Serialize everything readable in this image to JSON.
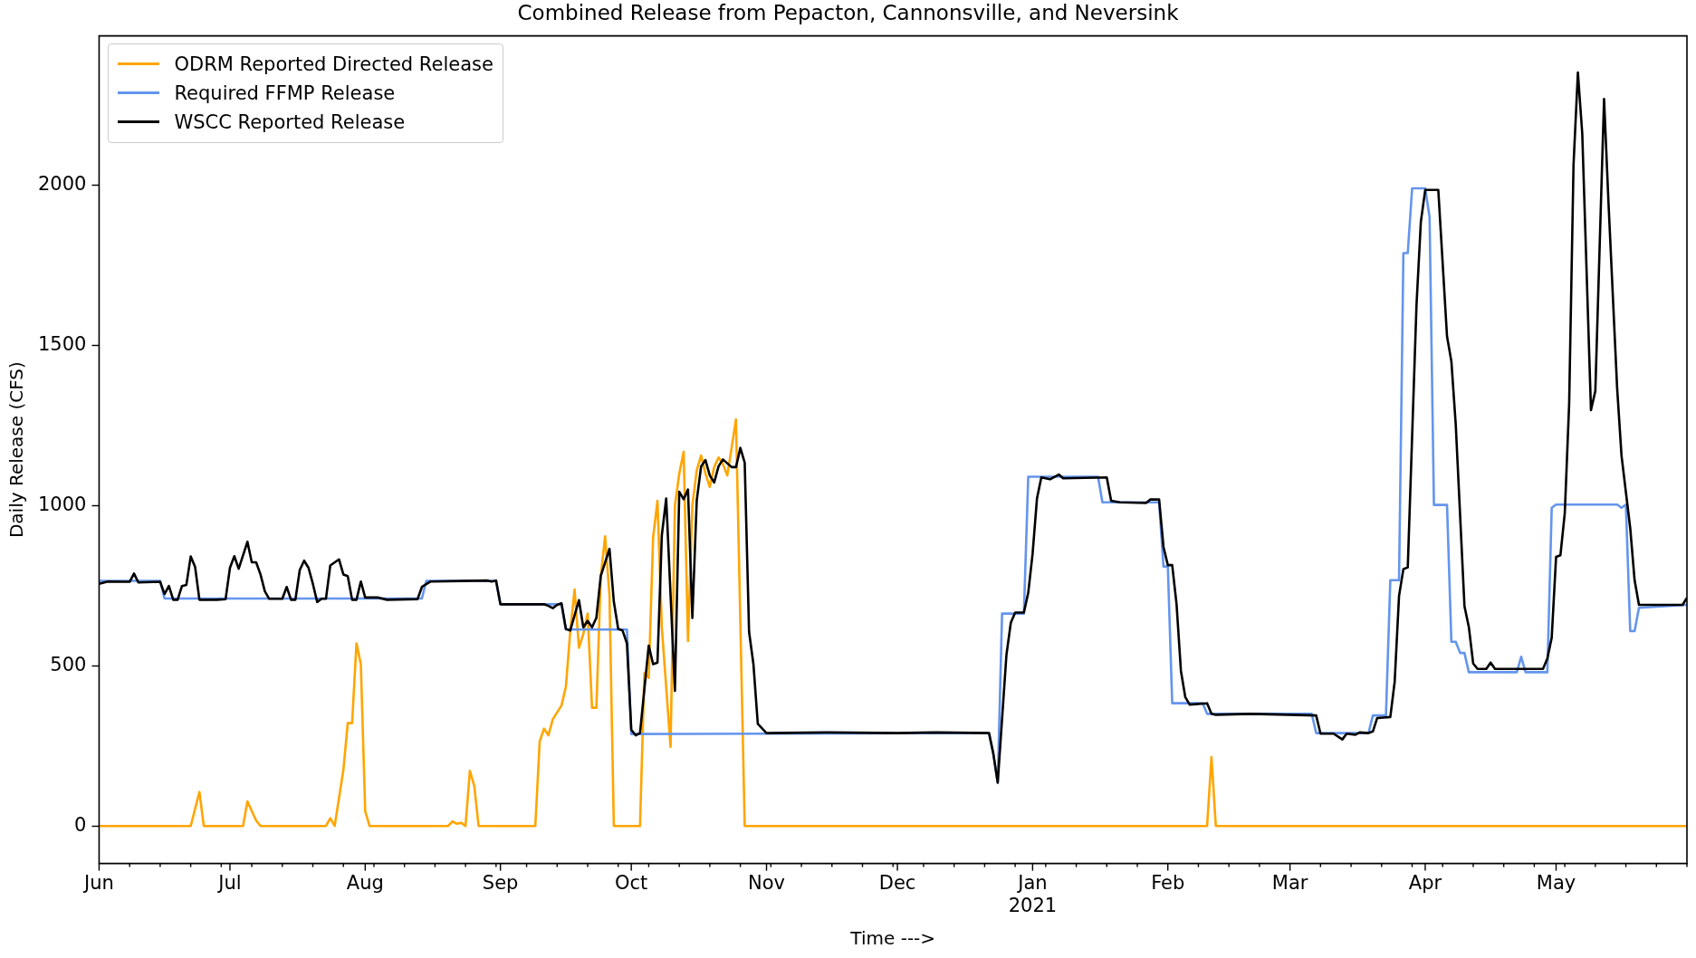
{
  "chart_data": {
    "type": "line",
    "title": "Combined Release from Pepacton, Cannonsville, and Neversink",
    "xlabel": "Time --->",
    "ylabel": "Daily Release (CFS)",
    "legend": "top left",
    "xlim": [
      "2020-06-01",
      "2021-05-31"
    ],
    "ylim": [
      -117,
      2466
    ],
    "yticks": [
      0,
      500,
      1000,
      1500,
      2000
    ],
    "xticks": [
      {
        "value": "2020-06-01",
        "label": "Jun"
      },
      {
        "value": "2020-06-08",
        "label": null
      },
      {
        "value": "2020-06-15",
        "label": null
      },
      {
        "value": "2020-06-22",
        "label": null
      },
      {
        "value": "2020-06-29",
        "label": null
      },
      {
        "value": "2020-07-01",
        "label": "Jul"
      },
      {
        "value": "2020-07-06",
        "label": null
      },
      {
        "value": "2020-07-13",
        "label": null
      },
      {
        "value": "2020-07-20",
        "label": null
      },
      {
        "value": "2020-07-27",
        "label": null
      },
      {
        "value": "2020-08-01",
        "label": "Aug"
      },
      {
        "value": "2020-08-03",
        "label": null
      },
      {
        "value": "2020-08-10",
        "label": null
      },
      {
        "value": "2020-08-17",
        "label": null
      },
      {
        "value": "2020-08-24",
        "label": null
      },
      {
        "value": "2020-08-31",
        "label": null
      },
      {
        "value": "2020-09-01",
        "label": "Sep"
      },
      {
        "value": "2020-09-07",
        "label": null
      },
      {
        "value": "2020-09-14",
        "label": null
      },
      {
        "value": "2020-09-21",
        "label": null
      },
      {
        "value": "2020-09-28",
        "label": null
      },
      {
        "value": "2020-10-01",
        "label": "Oct"
      },
      {
        "value": "2020-10-05",
        "label": null
      },
      {
        "value": "2020-10-12",
        "label": null
      },
      {
        "value": "2020-10-19",
        "label": null
      },
      {
        "value": "2020-10-26",
        "label": null
      },
      {
        "value": "2020-11-01",
        "label": "Nov"
      },
      {
        "value": "2020-11-02",
        "label": null
      },
      {
        "value": "2020-11-09",
        "label": null
      },
      {
        "value": "2020-11-16",
        "label": null
      },
      {
        "value": "2020-11-23",
        "label": null
      },
      {
        "value": "2020-11-30",
        "label": null
      },
      {
        "value": "2020-12-01",
        "label": "Dec"
      },
      {
        "value": "2020-12-07",
        "label": null
      },
      {
        "value": "2020-12-14",
        "label": null
      },
      {
        "value": "2020-12-21",
        "label": null
      },
      {
        "value": "2020-12-28",
        "label": null
      },
      {
        "value": "2021-01-01",
        "label": "Jan\n2021"
      },
      {
        "value": "2021-01-04",
        "label": null
      },
      {
        "value": "2021-01-11",
        "label": null
      },
      {
        "value": "2021-01-18",
        "label": null
      },
      {
        "value": "2021-01-25",
        "label": null
      },
      {
        "value": "2021-02-01",
        "label": "Feb"
      },
      {
        "value": "2021-02-08",
        "label": null
      },
      {
        "value": "2021-02-15",
        "label": null
      },
      {
        "value": "2021-02-22",
        "label": null
      },
      {
        "value": "2021-03-01",
        "label": "Mar"
      },
      {
        "value": "2021-03-08",
        "label": null
      },
      {
        "value": "2021-03-15",
        "label": null
      },
      {
        "value": "2021-03-22",
        "label": null
      },
      {
        "value": "2021-03-29",
        "label": null
      },
      {
        "value": "2021-04-01",
        "label": "Apr"
      },
      {
        "value": "2021-04-05",
        "label": null
      },
      {
        "value": "2021-04-12",
        "label": null
      },
      {
        "value": "2021-04-19",
        "label": null
      },
      {
        "value": "2021-04-26",
        "label": null
      },
      {
        "value": "2021-05-01",
        "label": "May"
      },
      {
        "value": "2021-05-03",
        "label": null
      },
      {
        "value": "2021-05-10",
        "label": null
      },
      {
        "value": "2021-05-17",
        "label": null
      },
      {
        "value": "2021-05-24",
        "label": null
      },
      {
        "value": "2021-05-31",
        "label": null
      }
    ],
    "series": [
      {
        "name": "ODRM Reported Directed Release",
        "color": "#ffa500",
        "x": [
          "2020-06-01",
          "2020-06-22",
          "2020-06-24",
          "2020-06-25",
          "2020-07-04",
          "2020-07-05",
          "2020-07-07",
          "2020-07-08",
          "2020-07-23",
          "2020-07-24",
          "2020-07-25",
          "2020-07-27",
          "2020-07-28",
          "2020-07-29",
          "2020-07-30",
          "2020-07-31",
          "2020-08-01",
          "2020-08-02",
          "2020-08-20",
          "2020-08-21",
          "2020-08-22",
          "2020-08-23",
          "2020-08-24",
          "2020-08-25",
          "2020-08-26",
          "2020-08-27",
          "2020-09-09",
          "2020-09-10",
          "2020-09-11",
          "2020-09-12",
          "2020-09-13",
          "2020-09-15",
          "2020-09-16",
          "2020-09-17",
          "2020-09-18",
          "2020-09-19",
          "2020-09-20",
          "2020-09-21",
          "2020-09-22",
          "2020-09-23",
          "2020-09-24",
          "2020-09-25",
          "2020-09-26",
          "2020-09-27",
          "2020-10-03",
          "2020-10-04",
          "2020-10-05",
          "2020-10-06",
          "2020-10-07",
          "2020-10-08",
          "2020-10-10",
          "2020-10-11",
          "2020-10-12",
          "2020-10-13",
          "2020-10-14",
          "2020-10-15",
          "2020-10-16",
          "2020-10-17",
          "2020-10-18",
          "2020-10-19",
          "2020-10-20",
          "2020-10-21",
          "2020-10-22",
          "2020-10-23",
          "2020-10-24",
          "2020-10-25",
          "2020-10-27",
          "2021-02-10",
          "2021-02-11",
          "2021-02-12",
          "2021-05-31"
        ],
        "values": [
          0,
          0,
          106,
          0,
          0,
          77,
          17,
          0,
          0,
          24,
          0,
          175,
          321,
          321,
          570,
          505,
          46,
          0,
          0,
          14,
          7,
          10,
          0,
          172,
          125,
          0,
          0,
          264,
          304,
          283,
          333,
          376,
          434,
          606,
          738,
          556,
          599,
          663,
          369,
          369,
          778,
          904,
          720,
          0,
          0,
          477,
          462,
          900,
          1015,
          620,
          247,
          1000,
          1100,
          1168,
          577,
          1000,
          1110,
          1156,
          1100,
          1058,
          1120,
          1150,
          1130,
          1094,
          1180,
          1269,
          0,
          0,
          215,
          0,
          0
        ]
      },
      {
        "name": "Required FFMP Release",
        "color": "#6495ed",
        "x": [
          "2020-06-01",
          "2020-06-15",
          "2020-06-16",
          "2020-08-14",
          "2020-08-15",
          "2020-08-31",
          "2020-09-01",
          "2020-09-15",
          "2020-09-16",
          "2020-09-30",
          "2020-10-01",
          "2020-12-22",
          "2020-12-23",
          "2020-12-24",
          "2020-12-25",
          "2020-12-30",
          "2020-12-31",
          "2021-01-16",
          "2021-01-17",
          "2021-01-30",
          "2021-01-31",
          "2021-02-01",
          "2021-02-02",
          "2021-02-09",
          "2021-02-10",
          "2021-03-06",
          "2021-03-07",
          "2021-03-19",
          "2021-03-20",
          "2021-03-23",
          "2021-03-24",
          "2021-03-26",
          "2021-03-27",
          "2021-03-28",
          "2021-03-29",
          "2021-04-01",
          "2021-04-02",
          "2021-04-03",
          "2021-04-06",
          "2021-04-07",
          "2021-04-08",
          "2021-04-09",
          "2021-04-10",
          "2021-04-11",
          "2021-04-22",
          "2021-04-23",
          "2021-04-24",
          "2021-04-29",
          "2021-04-30",
          "2021-05-01",
          "2021-05-15",
          "2021-05-16",
          "2021-05-17",
          "2021-05-18",
          "2021-05-19",
          "2021-05-20",
          "2021-05-31"
        ],
        "values": [
          765,
          765,
          710,
          710,
          765,
          765,
          692,
          692,
          613,
          613,
          287,
          290,
          225,
          135,
          663,
          663,
          1090,
          1090,
          1010,
          1010,
          810,
          810,
          383,
          383,
          350,
          350,
          290,
          290,
          345,
          345,
          767,
          767,
          1788,
          1788,
          1990,
          1990,
          1900,
          1002,
          1002,
          575,
          575,
          540,
          540,
          480,
          480,
          528,
          480,
          480,
          993,
          1003,
          1003,
          993,
          1003,
          608,
          608,
          681,
          690
        ]
      },
      {
        "name": "WSCC Reported Release",
        "color": "#000000",
        "x": [
          "2020-06-01",
          "2020-06-03",
          "2020-06-08",
          "2020-06-09",
          "2020-06-10",
          "2020-06-15",
          "2020-06-16",
          "2020-06-17",
          "2020-06-18",
          "2020-06-19",
          "2020-06-20",
          "2020-06-21",
          "2020-06-22",
          "2020-06-23",
          "2020-06-24",
          "2020-06-28",
          "2020-06-30",
          "2020-07-01",
          "2020-07-02",
          "2020-07-03",
          "2020-07-05",
          "2020-07-06",
          "2020-07-07",
          "2020-07-08",
          "2020-07-09",
          "2020-07-10",
          "2020-07-13",
          "2020-07-14",
          "2020-07-15",
          "2020-07-16",
          "2020-07-17",
          "2020-07-18",
          "2020-07-19",
          "2020-07-20",
          "2020-07-21",
          "2020-07-22",
          "2020-07-23",
          "2020-07-24",
          "2020-07-26",
          "2020-07-27",
          "2020-07-28",
          "2020-07-29",
          "2020-07-30",
          "2020-07-31",
          "2020-08-01",
          "2020-08-04",
          "2020-08-06",
          "2020-08-13",
          "2020-08-14",
          "2020-08-16",
          "2020-08-29",
          "2020-08-30",
          "2020-08-31",
          "2020-09-01",
          "2020-09-11",
          "2020-09-12",
          "2020-09-13",
          "2020-09-14",
          "2020-09-15",
          "2020-09-16",
          "2020-09-17",
          "2020-09-19",
          "2020-09-20",
          "2020-09-21",
          "2020-09-22",
          "2020-09-23",
          "2020-09-24",
          "2020-09-26",
          "2020-09-27",
          "2020-09-28",
          "2020-09-29",
          "2020-09-30",
          "2020-10-01",
          "2020-10-02",
          "2020-10-03",
          "2020-10-05",
          "2020-10-06",
          "2020-10-07",
          "2020-10-08",
          "2020-10-09",
          "2020-10-11",
          "2020-10-12",
          "2020-10-13",
          "2020-10-14",
          "2020-10-15",
          "2020-10-16",
          "2020-10-17",
          "2020-10-18",
          "2020-10-19",
          "2020-10-20",
          "2020-10-21",
          "2020-10-22",
          "2020-10-23",
          "2020-10-24",
          "2020-10-25",
          "2020-10-26",
          "2020-10-27",
          "2020-10-28",
          "2020-10-29",
          "2020-10-30",
          "2020-11-01",
          "2020-11-15",
          "2020-12-01",
          "2020-12-10",
          "2020-12-22",
          "2020-12-23",
          "2020-12-24",
          "2020-12-26",
          "2020-12-27",
          "2020-12-28",
          "2020-12-30",
          "2020-12-31",
          "2021-01-01",
          "2021-01-02",
          "2021-01-03",
          "2021-01-05",
          "2021-01-07",
          "2021-01-08",
          "2021-01-18",
          "2021-01-19",
          "2021-01-21",
          "2021-01-27",
          "2021-01-28",
          "2021-01-30",
          "2021-01-31",
          "2021-02-01",
          "2021-02-02",
          "2021-02-03",
          "2021-02-04",
          "2021-02-05",
          "2021-02-06",
          "2021-02-10",
          "2021-02-11",
          "2021-02-12",
          "2021-02-20",
          "2021-03-07",
          "2021-03-08",
          "2021-03-11",
          "2021-03-13",
          "2021-03-14",
          "2021-03-16",
          "2021-03-17",
          "2021-03-19",
          "2021-03-20",
          "2021-03-21",
          "2021-03-24",
          "2021-03-25",
          "2021-03-26",
          "2021-03-27",
          "2021-03-28",
          "2021-03-30",
          "2021-03-31",
          "2021-04-01",
          "2021-04-04",
          "2021-04-06",
          "2021-04-07",
          "2021-04-08",
          "2021-04-10",
          "2021-04-11",
          "2021-04-12",
          "2021-04-13",
          "2021-04-15",
          "2021-04-16",
          "2021-04-17",
          "2021-04-28",
          "2021-04-29",
          "2021-04-30",
          "2021-05-01",
          "2021-05-02",
          "2021-05-03",
          "2021-05-04",
          "2021-05-05",
          "2021-05-06",
          "2021-05-07",
          "2021-05-09",
          "2021-05-10",
          "2021-05-12",
          "2021-05-13",
          "2021-05-15",
          "2021-05-16",
          "2021-05-18",
          "2021-05-19",
          "2021-05-20",
          "2021-05-30",
          "2021-05-31"
        ],
        "values": [
          756,
          763,
          762,
          788,
          760,
          762,
          724,
          749,
          706,
          706,
          749,
          752,
          841,
          809,
          706,
          706,
          708,
          806,
          842,
          803,
          887,
          823,
          823,
          785,
          732,
          709,
          709,
          746,
          706,
          706,
          799,
          828,
          806,
          756,
          699,
          709,
          709,
          813,
          832,
          785,
          780,
          706,
          706,
          763,
          713,
          713,
          706,
          708,
          746,
          763,
          766,
          763,
          766,
          692,
          692,
          687,
          680,
          690,
          695,
          615,
          610,
          705,
          620,
          640,
          620,
          650,
          780,
          865,
          700,
          615,
          610,
          570,
          300,
          283,
          290,
          563,
          505,
          510,
          907,
          1022,
          422,
          1043,
          1020,
          1050,
          649,
          1015,
          1122,
          1142,
          1094,
          1072,
          1122,
          1144,
          1132,
          1120,
          1120,
          1180,
          1134,
          606,
          505,
          319,
          290,
          292,
          290,
          292,
          290,
          225,
          135,
          534,
          634,
          666,
          666,
          728,
          850,
          1022,
          1088,
          1082,
          1097,
          1085,
          1088,
          1015,
          1010,
          1008,
          1019,
          1019,
          871,
          814,
          814,
          692,
          484,
          402,
          379,
          383,
          350,
          347,
          350,
          345,
          288,
          288,
          270,
          288,
          285,
          292,
          290,
          295,
          337,
          340,
          450,
          718,
          802,
          807,
          1625,
          1885,
          1985,
          1985,
          1528,
          1450,
          1253,
          686,
          621,
          507,
          490,
          490,
          510,
          490,
          490,
          523,
          588,
          840,
          845,
          977,
          1318,
          2063,
          2352,
          2161,
          1298,
          1358,
          2269,
          1950,
          1366,
          1156,
          929,
          767,
          690,
          690,
          712
        ]
      }
    ]
  }
}
